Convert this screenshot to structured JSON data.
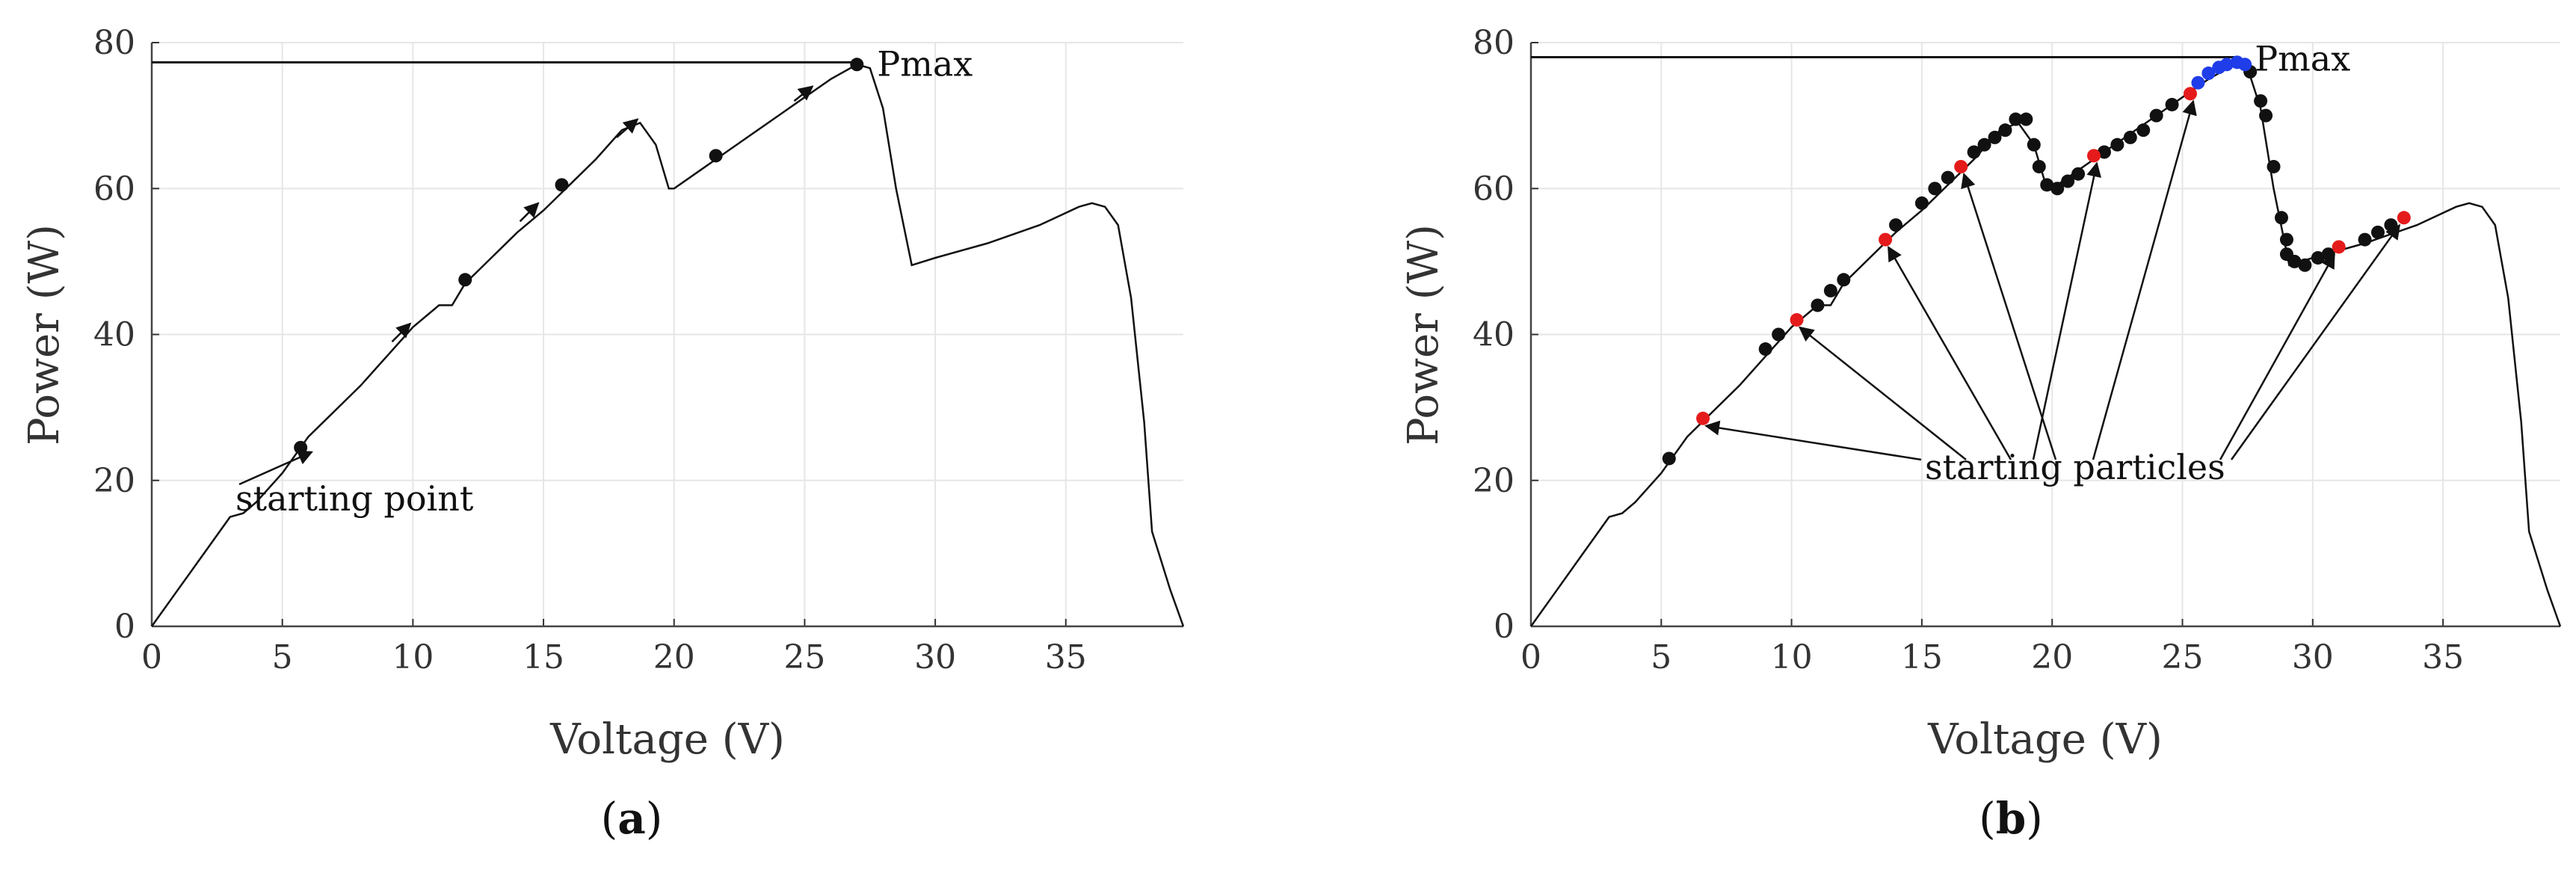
{
  "chart_data": [
    {
      "type": "line",
      "caption_letter": "a",
      "xlabel": "Voltage (V)",
      "ylabel": "Power (W)",
      "xlim": [
        0,
        39.5
      ],
      "ylim": [
        0,
        80
      ],
      "x_ticks": [
        "0",
        "5",
        "10",
        "15",
        "20",
        "25",
        "30",
        "35"
      ],
      "y_ticks": [
        "0",
        "20",
        "40",
        "60",
        "80"
      ],
      "grid": true,
      "curve": [
        [
          0,
          0
        ],
        [
          1,
          5
        ],
        [
          2,
          10
        ],
        [
          3,
          15
        ],
        [
          3.5,
          15.5
        ],
        [
          4,
          17
        ],
        [
          5,
          21
        ],
        [
          6,
          26
        ],
        [
          7,
          29.5
        ],
        [
          8,
          33
        ],
        [
          9,
          37
        ],
        [
          10,
          41
        ],
        [
          11,
          44
        ],
        [
          11.5,
          44
        ],
        [
          12,
          47
        ],
        [
          13,
          50.5
        ],
        [
          14,
          54
        ],
        [
          15,
          57
        ],
        [
          16,
          60.5
        ],
        [
          17,
          64
        ],
        [
          18,
          68
        ],
        [
          18.7,
          69
        ],
        [
          19.3,
          66
        ],
        [
          19.8,
          60
        ],
        [
          20,
          60
        ],
        [
          21,
          62.5
        ],
        [
          22,
          65
        ],
        [
          23,
          67.5
        ],
        [
          24,
          70
        ],
        [
          25,
          72.5
        ],
        [
          26,
          75
        ],
        [
          27,
          77
        ],
        [
          27.5,
          76.5
        ],
        [
          28,
          71
        ],
        [
          28.5,
          60
        ],
        [
          29.1,
          49.5
        ],
        [
          30,
          50.5
        ],
        [
          32,
          52.5
        ],
        [
          34,
          55
        ],
        [
          35.5,
          57.5
        ],
        [
          36,
          58
        ],
        [
          36.5,
          57.5
        ],
        [
          37,
          55
        ],
        [
          37.5,
          45
        ],
        [
          38,
          28
        ],
        [
          38.3,
          13
        ],
        [
          39,
          5
        ],
        [
          39.5,
          0
        ]
      ],
      "pmax_line_y": 77.3,
      "pmax_label": "Pmax",
      "pmax_point": [
        27,
        77
      ],
      "search_points": [
        [
          5.7,
          24.5
        ],
        [
          12,
          47.5
        ],
        [
          15.7,
          60.5
        ],
        [
          21.6,
          64.5
        ],
        [
          27,
          77
        ]
      ],
      "arrows": [
        [
          [
            9.2,
            39
          ],
          [
            9.9,
            41.5
          ]
        ],
        [
          [
            14.1,
            55.5
          ],
          [
            14.8,
            58
          ]
        ],
        [
          [
            17.8,
            67
          ],
          [
            18.6,
            69.5
          ]
        ],
        [
          [
            24.6,
            72
          ],
          [
            25.3,
            74
          ]
        ]
      ],
      "annotation": "starting point",
      "annotation_target": [
        5.9,
        24.2
      ]
    },
    {
      "type": "line",
      "caption_letter": "b",
      "xlabel": "Voltage (V)",
      "ylabel": "Power (W)",
      "xlim": [
        0,
        39.5
      ],
      "ylim": [
        0,
        80
      ],
      "x_ticks": [
        "0",
        "5",
        "10",
        "15",
        "20",
        "25",
        "30",
        "35"
      ],
      "y_ticks": [
        "0",
        "20",
        "40",
        "60",
        "80"
      ],
      "grid": true,
      "curve": [
        [
          0,
          0
        ],
        [
          1,
          5
        ],
        [
          2,
          10
        ],
        [
          3,
          15
        ],
        [
          3.5,
          15.5
        ],
        [
          4,
          17
        ],
        [
          5,
          21
        ],
        [
          6,
          26
        ],
        [
          7,
          29.5
        ],
        [
          8,
          33
        ],
        [
          9,
          37
        ],
        [
          10,
          41
        ],
        [
          11,
          44
        ],
        [
          11.5,
          44
        ],
        [
          12,
          47
        ],
        [
          13,
          50.5
        ],
        [
          14,
          54
        ],
        [
          15,
          57
        ],
        [
          16,
          60.5
        ],
        [
          17,
          64
        ],
        [
          18,
          68
        ],
        [
          18.7,
          69
        ],
        [
          19.3,
          66
        ],
        [
          19.8,
          60
        ],
        [
          20,
          60
        ],
        [
          21,
          62.5
        ],
        [
          22,
          65
        ],
        [
          23,
          67.5
        ],
        [
          24,
          70
        ],
        [
          25,
          72.5
        ],
        [
          26,
          75
        ],
        [
          27,
          77
        ],
        [
          27.5,
          76.5
        ],
        [
          28,
          71
        ],
        [
          28.5,
          60
        ],
        [
          29.1,
          49.5
        ],
        [
          30,
          50.5
        ],
        [
          32,
          52.5
        ],
        [
          34,
          55
        ],
        [
          35.5,
          57.5
        ],
        [
          36,
          58
        ],
        [
          36.5,
          57.5
        ],
        [
          37,
          55
        ],
        [
          37.5,
          45
        ],
        [
          38,
          28
        ],
        [
          38.3,
          13
        ],
        [
          39,
          5
        ],
        [
          39.5,
          0
        ]
      ],
      "pmax_line_y": 78,
      "pmax_label": "Pmax",
      "black_points": [
        [
          5.3,
          23
        ],
        [
          9,
          38
        ],
        [
          9.5,
          40
        ],
        [
          11,
          44
        ],
        [
          11.5,
          46
        ],
        [
          12,
          47.5
        ],
        [
          14,
          55
        ],
        [
          15,
          58
        ],
        [
          15.5,
          60
        ],
        [
          16,
          61.5
        ],
        [
          17,
          65
        ],
        [
          17.4,
          66
        ],
        [
          17.8,
          67
        ],
        [
          18.2,
          68
        ],
        [
          18.6,
          69.5
        ],
        [
          19,
          69.5
        ],
        [
          19.3,
          66
        ],
        [
          19.5,
          63
        ],
        [
          19.8,
          60.5
        ],
        [
          20.2,
          60
        ],
        [
          20.6,
          61
        ],
        [
          21,
          62
        ],
        [
          22,
          65
        ],
        [
          22.5,
          66
        ],
        [
          23,
          67
        ],
        [
          23.5,
          68
        ],
        [
          24,
          70
        ],
        [
          24.6,
          71.5
        ],
        [
          27.6,
          76
        ],
        [
          28,
          72
        ],
        [
          28.2,
          70
        ],
        [
          28.5,
          63
        ],
        [
          28.8,
          56
        ],
        [
          29,
          53
        ],
        [
          29,
          51
        ],
        [
          29.3,
          50
        ],
        [
          29.7,
          49.5
        ],
        [
          30.2,
          50.5
        ],
        [
          30.6,
          51
        ],
        [
          32,
          53
        ],
        [
          32.5,
          54
        ],
        [
          33,
          55
        ]
      ],
      "red_points": [
        [
          6.6,
          28.5
        ],
        [
          10.2,
          42
        ],
        [
          13.6,
          53
        ],
        [
          16.5,
          63
        ],
        [
          21.6,
          64.5
        ],
        [
          25.3,
          73
        ],
        [
          31,
          52
        ],
        [
          33.5,
          56
        ]
      ],
      "blue_points": [
        [
          25.6,
          74.5
        ],
        [
          26,
          75.8
        ],
        [
          26.4,
          76.6
        ],
        [
          26.7,
          77
        ],
        [
          27.1,
          77.3
        ],
        [
          27.4,
          77
        ]
      ],
      "annotation": "starting particles",
      "annotation_targets": [
        [
          6.6,
          28.5
        ],
        [
          10.2,
          42
        ],
        [
          13.6,
          53
        ],
        [
          16.5,
          63
        ],
        [
          21.6,
          64.5
        ],
        [
          25.3,
          73
        ],
        [
          31,
          52
        ],
        [
          33.5,
          56
        ]
      ]
    }
  ]
}
